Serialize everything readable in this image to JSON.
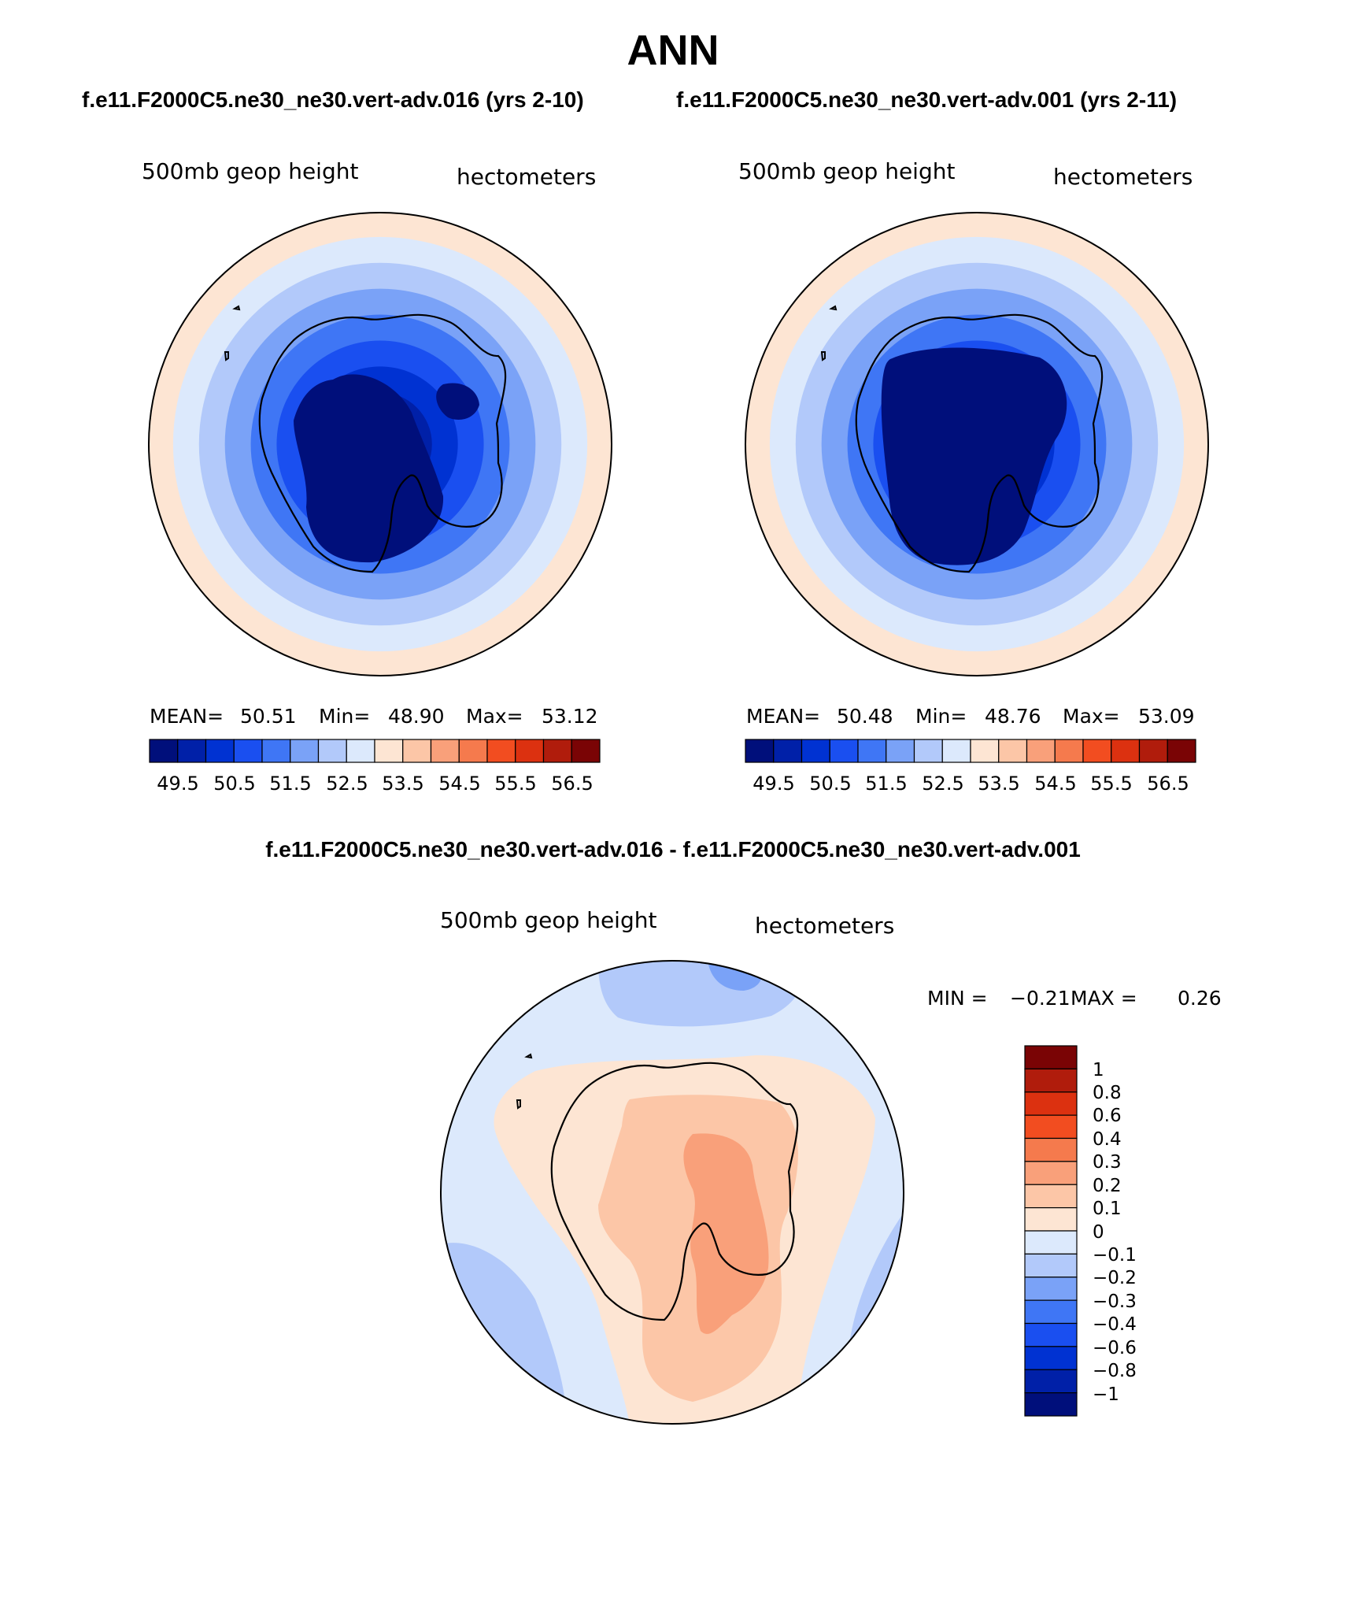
{
  "header": {
    "title": "ANN",
    "subtitle_left": "f.e11.F2000C5.ne30_ne30.vert-adv.016 (yrs 2-10)",
    "subtitle_right": "f.e11.F2000C5.ne30_ne30.vert-adv.001 (yrs 2-11)",
    "diff_title": "f.e11.F2000C5.ne30_ne30.vert-adv.016 - f.e11.F2000C5.ne30_ne30.vert-adv.001"
  },
  "colors": {
    "abs_scale": [
      "#000f7b",
      "#0020a8",
      "#0032d2",
      "#1a4ff0",
      "#3f76f5",
      "#7aa2f7",
      "#b2c9fa",
      "#dce9fc",
      "#fde5d3",
      "#fcc6a7",
      "#f9a07a",
      "#f57a4d",
      "#f24d20",
      "#dc3110",
      "#b01c0c",
      "#7a0405"
    ],
    "diff_scale": [
      "#000f7b",
      "#0020a8",
      "#0032d2",
      "#1a4ff0",
      "#3f76f5",
      "#7aa2f7",
      "#b2c9fa",
      "#dce9fc",
      "#fde5d3",
      "#fcc6a7",
      "#f9a07a",
      "#f57a4d",
      "#f24d20",
      "#dc3110",
      "#b01c0c",
      "#7a0405"
    ],
    "coast": "#000000"
  },
  "chart_data": [
    {
      "type": "heatmap",
      "projection": "south-polar-stereographic",
      "title": "500mb geop height",
      "units": "hectometers",
      "case": "f.e11.F2000C5.ne30_ne30.vert-adv.016 (yrs 2-10)",
      "stats": {
        "mean_label": "MEAN=",
        "mean": "50.51",
        "min_label": "Min=",
        "min": "48.90",
        "max_label": "Max=",
        "max": "53.12"
      },
      "colorbar_ticks": [
        "49.5",
        "50.5",
        "51.5",
        "52.5",
        "53.5",
        "54.5",
        "55.5",
        "56.5"
      ],
      "contour_levels": [
        49,
        49.5,
        50,
        50.5,
        51,
        51.5,
        52,
        52.5,
        53,
        53.5,
        54,
        54.5,
        55,
        55.5,
        56,
        56.5
      ],
      "ring_levels_pole_to_edge": [
        49.0,
        49.5,
        50.0,
        50.5,
        51.0,
        51.5,
        52.0,
        52.5,
        53.0
      ],
      "legend_position": "bottom"
    },
    {
      "type": "heatmap",
      "projection": "south-polar-stereographic",
      "title": "500mb geop height",
      "units": "hectometers",
      "case": "f.e11.F2000C5.ne30_ne30.vert-adv.001 (yrs 2-11)",
      "stats": {
        "mean_label": "MEAN=",
        "mean": "50.48",
        "min_label": "Min=",
        "min": "48.76",
        "max_label": "Max=",
        "max": "53.09"
      },
      "colorbar_ticks": [
        "49.5",
        "50.5",
        "51.5",
        "52.5",
        "53.5",
        "54.5",
        "55.5",
        "56.5"
      ],
      "contour_levels": [
        49,
        49.5,
        50,
        50.5,
        51,
        51.5,
        52,
        52.5,
        53,
        53.5,
        54,
        54.5,
        55,
        55.5,
        56,
        56.5
      ],
      "ring_levels_pole_to_edge": [
        49.0,
        49.5,
        50.0,
        50.5,
        51.0,
        51.5,
        52.0,
        52.5,
        53.0
      ],
      "legend_position": "bottom"
    },
    {
      "type": "heatmap",
      "projection": "south-polar-stereographic",
      "title": "500mb geop height",
      "units": "hectometers",
      "case": "f.e11.F2000C5.ne30_ne30.vert-adv.016 - f.e11.F2000C5.ne30_ne30.vert-adv.001",
      "stats": {
        "min_label": "MIN =",
        "min": "−0.21",
        "max_label": "MAX =",
        "max": "0.26"
      },
      "colorbar_ticks": [
        "1",
        "0.8",
        "0.6",
        "0.4",
        "0.3",
        "0.2",
        "0.1",
        "0",
        "−0.1",
        "−0.2",
        "−0.3",
        "−0.4",
        "−0.6",
        "−0.8",
        "−1"
      ],
      "legend_position": "right"
    }
  ]
}
